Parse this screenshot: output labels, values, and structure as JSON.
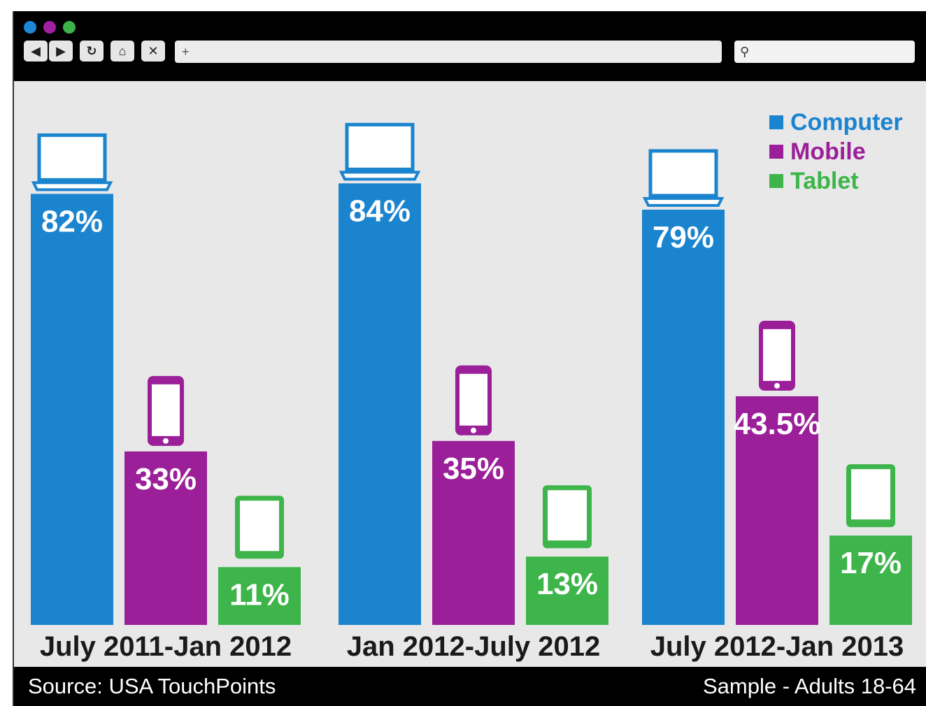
{
  "toolbar": {
    "dots": [
      "#1e88d6",
      "#a020a0",
      "#3cb34a"
    ],
    "back_icon": "back-arrow-icon",
    "forward_icon": "forward-arrow-icon",
    "reload_icon": "reload-icon",
    "home_icon": "home-icon",
    "stop_icon": "close-icon",
    "url_value": "+",
    "search_icon": "search-icon"
  },
  "chart_data": {
    "type": "bar",
    "categories": [
      "July 2011-Jan 2012",
      "Jan 2012-July 2012",
      "July 2012-Jan 2013"
    ],
    "series": [
      {
        "name": "Computer",
        "color": "#1b84ce",
        "values": [
          82,
          84,
          79
        ],
        "labels": [
          "82%",
          "84%",
          "79%"
        ],
        "icon": "laptop-icon"
      },
      {
        "name": "Mobile",
        "color": "#9b1f99",
        "values": [
          33,
          35,
          43.5
        ],
        "labels": [
          "33%",
          "35%",
          "43.5%"
        ],
        "icon": "smartphone-icon"
      },
      {
        "name": "Tablet",
        "color": "#3db54a",
        "values": [
          11,
          13,
          17
        ],
        "labels": [
          "11%",
          "13%",
          "17%"
        ],
        "icon": "tablet-icon"
      }
    ],
    "ylim": [
      0,
      100
    ],
    "legend": "top-right",
    "grid": false
  },
  "footer": {
    "source": "Source: USA TouchPoints",
    "sample": "Sample - Adults 18-64"
  }
}
